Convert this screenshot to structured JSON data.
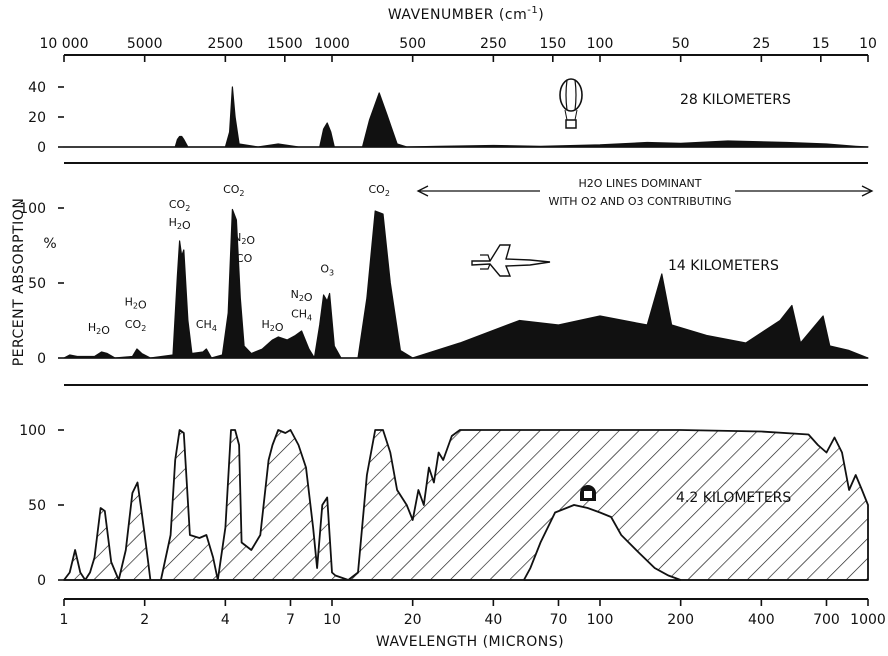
{
  "chart_data": {
    "type": "area",
    "title": "",
    "top_axis": {
      "label": "WAVENUMBER (cm",
      "label_sup": "-1",
      "label_end": ")",
      "ticks": [
        {
          "label": "10 000",
          "value": 10000
        },
        {
          "label": "5000",
          "value": 5000
        },
        {
          "label": "2500",
          "value": 2500
        },
        {
          "label": "1500",
          "value": 1500
        },
        {
          "label": "1000",
          "value": 1000
        },
        {
          "label": "500",
          "value": 500
        },
        {
          "label": "250",
          "value": 250
        },
        {
          "label": "150",
          "value": 150
        },
        {
          "label": "100",
          "value": 100
        },
        {
          "label": "50",
          "value": 50
        },
        {
          "label": "25",
          "value": 25
        },
        {
          "label": "15",
          "value": 15
        },
        {
          "label": "10",
          "value": 10
        }
      ]
    },
    "xaxis": {
      "label": "WAVELENGTH (MICRONS)",
      "scale": "log",
      "range": [
        1,
        1000
      ],
      "ticks": [
        1,
        2,
        4,
        7,
        10,
        20,
        40,
        70,
        100,
        200,
        400,
        700,
        1000
      ]
    },
    "ylabel": "PERCENT ABSORPTION",
    "ylabel_unit": "%",
    "panels": [
      {
        "name": "28 KILOMETERS",
        "yticks": [
          0,
          20,
          40
        ],
        "ylim": [
          0,
          40
        ],
        "series": [
          {
            "x": 1,
            "y": 0
          },
          {
            "x": 2.6,
            "y": 0
          },
          {
            "x": 2.65,
            "y": 5
          },
          {
            "x": 2.7,
            "y": 7
          },
          {
            "x": 2.75,
            "y": 7
          },
          {
            "x": 2.8,
            "y": 5
          },
          {
            "x": 2.9,
            "y": 0
          },
          {
            "x": 4.0,
            "y": 0
          },
          {
            "x": 4.15,
            "y": 10
          },
          {
            "x": 4.25,
            "y": 40
          },
          {
            "x": 4.35,
            "y": 20
          },
          {
            "x": 4.5,
            "y": 2
          },
          {
            "x": 5.3,
            "y": 0
          },
          {
            "x": 6.3,
            "y": 2
          },
          {
            "x": 7.5,
            "y": 0
          },
          {
            "x": 9.0,
            "y": 0
          },
          {
            "x": 9.3,
            "y": 12
          },
          {
            "x": 9.6,
            "y": 16
          },
          {
            "x": 9.9,
            "y": 10
          },
          {
            "x": 10.2,
            "y": 0
          },
          {
            "x": 13.0,
            "y": 0
          },
          {
            "x": 13.8,
            "y": 18
          },
          {
            "x": 15.0,
            "y": 36
          },
          {
            "x": 16.0,
            "y": 22
          },
          {
            "x": 17.5,
            "y": 2
          },
          {
            "x": 19.0,
            "y": 0
          },
          {
            "x": 25,
            "y": 0.5
          },
          {
            "x": 40,
            "y": 1
          },
          {
            "x": 60,
            "y": 0.5
          },
          {
            "x": 100,
            "y": 1.5
          },
          {
            "x": 150,
            "y": 3
          },
          {
            "x": 200,
            "y": 2.5
          },
          {
            "x": 300,
            "y": 4
          },
          {
            "x": 500,
            "y": 3
          },
          {
            "x": 700,
            "y": 2
          },
          {
            "x": 900,
            "y": 0.5
          },
          {
            "x": 1000,
            "y": 0
          }
        ]
      },
      {
        "name": "14 KILOMETERS",
        "yticks": [
          0,
          50,
          100
        ],
        "ylim": [
          0,
          100
        ],
        "series": [
          {
            "x": 1,
            "y": 0
          },
          {
            "x": 1.05,
            "y": 2
          },
          {
            "x": 1.12,
            "y": 1
          },
          {
            "x": 1.3,
            "y": 1
          },
          {
            "x": 1.38,
            "y": 4
          },
          {
            "x": 1.45,
            "y": 3
          },
          {
            "x": 1.55,
            "y": 0
          },
          {
            "x": 1.8,
            "y": 1
          },
          {
            "x": 1.87,
            "y": 6
          },
          {
            "x": 1.95,
            "y": 3
          },
          {
            "x": 2.1,
            "y": 0
          },
          {
            "x": 2.55,
            "y": 2
          },
          {
            "x": 2.65,
            "y": 55
          },
          {
            "x": 2.7,
            "y": 78
          },
          {
            "x": 2.75,
            "y": 68
          },
          {
            "x": 2.8,
            "y": 72
          },
          {
            "x": 2.9,
            "y": 25
          },
          {
            "x": 3.0,
            "y": 3
          },
          {
            "x": 3.3,
            "y": 4
          },
          {
            "x": 3.4,
            "y": 6
          },
          {
            "x": 3.55,
            "y": 0
          },
          {
            "x": 3.9,
            "y": 2
          },
          {
            "x": 4.1,
            "y": 30
          },
          {
            "x": 4.25,
            "y": 99
          },
          {
            "x": 4.4,
            "y": 92
          },
          {
            "x": 4.55,
            "y": 40
          },
          {
            "x": 4.7,
            "y": 8
          },
          {
            "x": 5.0,
            "y": 3
          },
          {
            "x": 5.5,
            "y": 6
          },
          {
            "x": 6.0,
            "y": 12
          },
          {
            "x": 6.3,
            "y": 14
          },
          {
            "x": 6.8,
            "y": 12
          },
          {
            "x": 7.3,
            "y": 15
          },
          {
            "x": 7.7,
            "y": 18
          },
          {
            "x": 8.2,
            "y": 6
          },
          {
            "x": 8.6,
            "y": 0
          },
          {
            "x": 9.0,
            "y": 22
          },
          {
            "x": 9.3,
            "y": 42
          },
          {
            "x": 9.6,
            "y": 38
          },
          {
            "x": 9.8,
            "y": 43
          },
          {
            "x": 10.2,
            "y": 8
          },
          {
            "x": 10.8,
            "y": 0
          },
          {
            "x": 12.5,
            "y": 0
          },
          {
            "x": 13.5,
            "y": 40
          },
          {
            "x": 14.5,
            "y": 98
          },
          {
            "x": 15.5,
            "y": 96
          },
          {
            "x": 16.5,
            "y": 50
          },
          {
            "x": 18.0,
            "y": 5
          },
          {
            "x": 20,
            "y": 0
          },
          {
            "x": 30,
            "y": 10
          },
          {
            "x": 50,
            "y": 25
          },
          {
            "x": 70,
            "y": 22
          },
          {
            "x": 100,
            "y": 28
          },
          {
            "x": 150,
            "y": 22
          },
          {
            "x": 170,
            "y": 56
          },
          {
            "x": 185,
            "y": 22
          },
          {
            "x": 250,
            "y": 15
          },
          {
            "x": 350,
            "y": 10
          },
          {
            "x": 470,
            "y": 25
          },
          {
            "x": 520,
            "y": 35
          },
          {
            "x": 560,
            "y": 10
          },
          {
            "x": 680,
            "y": 28
          },
          {
            "x": 720,
            "y": 8
          },
          {
            "x": 850,
            "y": 5
          },
          {
            "x": 1000,
            "y": 0
          }
        ]
      },
      {
        "name": "4.2 KILOMETERS",
        "yticks": [
          0,
          50,
          100
        ],
        "ylim": [
          0,
          100
        ],
        "series": [
          {
            "x": 1,
            "y": 0
          },
          {
            "x": 1.05,
            "y": 5
          },
          {
            "x": 1.1,
            "y": 20
          },
          {
            "x": 1.15,
            "y": 5
          },
          {
            "x": 1.2,
            "y": 0
          },
          {
            "x": 1.25,
            "y": 5
          },
          {
            "x": 1.3,
            "y": 15
          },
          {
            "x": 1.37,
            "y": 48
          },
          {
            "x": 1.42,
            "y": 46
          },
          {
            "x": 1.5,
            "y": 12
          },
          {
            "x": 1.6,
            "y": 0
          },
          {
            "x": 1.7,
            "y": 20
          },
          {
            "x": 1.8,
            "y": 58
          },
          {
            "x": 1.88,
            "y": 65
          },
          {
            "x": 1.95,
            "y": 45
          },
          {
            "x": 2.0,
            "y": 30
          },
          {
            "x": 2.05,
            "y": 15
          },
          {
            "x": 2.1,
            "y": 0
          },
          {
            "x": 2.3,
            "y": 0
          },
          {
            "x": 2.5,
            "y": 30
          },
          {
            "x": 2.6,
            "y": 80
          },
          {
            "x": 2.7,
            "y": 100
          },
          {
            "x": 2.8,
            "y": 98
          },
          {
            "x": 2.95,
            "y": 30
          },
          {
            "x": 3.2,
            "y": 28
          },
          {
            "x": 3.4,
            "y": 30
          },
          {
            "x": 3.6,
            "y": 15
          },
          {
            "x": 3.75,
            "y": 0
          },
          {
            "x": 4.0,
            "y": 35
          },
          {
            "x": 4.2,
            "y": 100
          },
          {
            "x": 4.35,
            "y": 100
          },
          {
            "x": 4.5,
            "y": 90
          },
          {
            "x": 4.6,
            "y": 25
          },
          {
            "x": 5.0,
            "y": 20
          },
          {
            "x": 5.4,
            "y": 30
          },
          {
            "x": 5.8,
            "y": 80
          },
          {
            "x": 6.0,
            "y": 90
          },
          {
            "x": 6.3,
            "y": 100
          },
          {
            "x": 6.7,
            "y": 98
          },
          {
            "x": 7.0,
            "y": 100
          },
          {
            "x": 7.5,
            "y": 90
          },
          {
            "x": 8.0,
            "y": 75
          },
          {
            "x": 8.5,
            "y": 35
          },
          {
            "x": 8.8,
            "y": 8
          },
          {
            "x": 9.2,
            "y": 50
          },
          {
            "x": 9.6,
            "y": 55
          },
          {
            "x": 9.8,
            "y": 30
          },
          {
            "x": 10.0,
            "y": 5
          },
          {
            "x": 10.3,
            "y": 3
          },
          {
            "x": 11.5,
            "y": 0
          },
          {
            "x": 12.5,
            "y": 5
          },
          {
            "x": 13.5,
            "y": 70
          },
          {
            "x": 14.5,
            "y": 100
          },
          {
            "x": 15.5,
            "y": 100
          },
          {
            "x": 16.5,
            "y": 85
          },
          {
            "x": 17.5,
            "y": 60
          },
          {
            "x": 19.0,
            "y": 50
          },
          {
            "x": 20.0,
            "y": 40
          },
          {
            "x": 21,
            "y": 60
          },
          {
            "x": 22,
            "y": 50
          },
          {
            "x": 23,
            "y": 75
          },
          {
            "x": 24,
            "y": 65
          },
          {
            "x": 25,
            "y": 85
          },
          {
            "x": 26,
            "y": 80
          },
          {
            "x": 28,
            "y": 96
          },
          {
            "x": 30,
            "y": 100
          },
          {
            "x": 35,
            "y": 100
          },
          {
            "x": 50,
            "y": 100
          },
          {
            "x": 100,
            "y": 100
          },
          {
            "x": 200,
            "y": 100
          },
          {
            "x": 400,
            "y": 99
          },
          {
            "x": 600,
            "y": 97
          },
          {
            "x": 650,
            "y": 90
          },
          {
            "x": 700,
            "y": 85
          },
          {
            "x": 750,
            "y": 95
          },
          {
            "x": 800,
            "y": 85
          },
          {
            "x": 850,
            "y": 60
          },
          {
            "x": 900,
            "y": 70
          },
          {
            "x": 950,
            "y": 60
          },
          {
            "x": 1000,
            "y": 50
          }
        ]
      }
    ],
    "annotations": {
      "panel1": {
        "label": "28 KILOMETERS"
      },
      "panel2": {
        "label": "14 KILOMETERS",
        "arrow_text_line1": "H2O LINES DOMINANT",
        "arrow_text_line2": "WITH O2 AND O3 CONTRIBUTING",
        "molecules": [
          {
            "text": "H2O",
            "x": 1.35,
            "y": 18
          },
          {
            "text": "H2O",
            "x": 1.85,
            "y": 35
          },
          {
            "text": "CO2",
            "x": 1.85,
            "y": 20
          },
          {
            "text": "CO2",
            "x": 2.7,
            "y": 100
          },
          {
            "text": "H2O",
            "x": 2.7,
            "y": 88
          },
          {
            "text": "CH4",
            "x": 3.4,
            "y": 20
          },
          {
            "text": "CO2",
            "x": 4.3,
            "y": 110
          },
          {
            "text": "N2O",
            "x": 4.7,
            "y": 78
          },
          {
            "text": "CO",
            "x": 4.7,
            "y": 64
          },
          {
            "text": "H2O",
            "x": 6.0,
            "y": 20
          },
          {
            "text": "N2O",
            "x": 7.7,
            "y": 40
          },
          {
            "text": "CH4",
            "x": 7.7,
            "y": 27
          },
          {
            "text": "O3",
            "x": 9.6,
            "y": 57
          },
          {
            "text": "CO2",
            "x": 15.0,
            "y": 110
          }
        ]
      },
      "panel3": {
        "label": "4.2 KILOMETERS"
      }
    }
  }
}
